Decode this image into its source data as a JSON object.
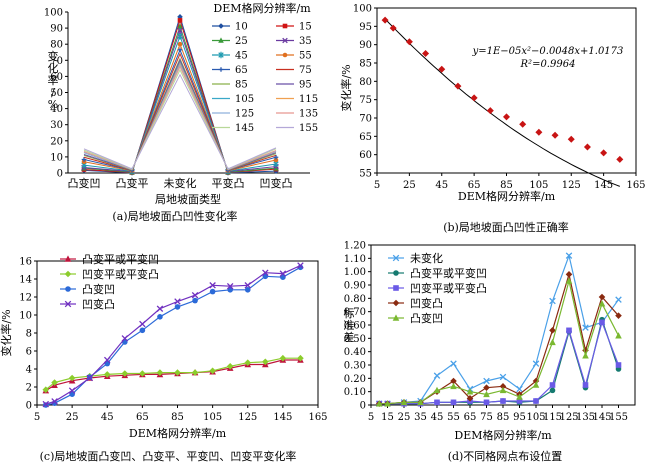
{
  "chart_data": [
    {
      "id": "a",
      "type": "line",
      "categories": [
        "凸变凹",
        "凸变平",
        "未变化",
        "平变凸",
        "凹变凸"
      ],
      "xlabel": "局地坡面类型",
      "ylabel": "变化率/%",
      "ylim": [
        0,
        100
      ],
      "yticks": [
        0,
        10,
        20,
        30,
        40,
        50,
        60,
        70,
        80,
        90,
        100
      ],
      "legend_title": "DEM格网分辨率/m",
      "legend_placement": "right",
      "caption": "(a)局地坡面凸凹性变化率",
      "series": [
        {
          "name": "10",
          "color": "#1f4fa0",
          "marker": "diamond",
          "values": [
            1.6,
            0.1,
            97.0,
            0.1,
            1.2
          ]
        },
        {
          "name": "15",
          "color": "#d01414",
          "marker": "square",
          "values": [
            2.2,
            0.3,
            94.8,
            0.3,
            2.4
          ]
        },
        {
          "name": "25",
          "color": "#3a9a3a",
          "marker": "triangle",
          "values": [
            3.0,
            0.5,
            91.0,
            0.5,
            3.0
          ]
        },
        {
          "name": "35",
          "color": "#6a3aa0",
          "marker": "x",
          "values": [
            3.4,
            0.9,
            88.5,
            0.9,
            4.0
          ]
        },
        {
          "name": "45",
          "color": "#1f9bb0",
          "marker": "star",
          "values": [
            4.9,
            1.2,
            85.0,
            1.2,
            5.6
          ]
        },
        {
          "name": "55",
          "color": "#e07020",
          "marker": "circle",
          "values": [
            7.0,
            1.4,
            80.0,
            1.4,
            8.1
          ]
        },
        {
          "name": "65",
          "color": "#2a5ab0",
          "marker": "plus",
          "values": [
            8.4,
            1.6,
            76.5,
            1.6,
            9.8
          ]
        },
        {
          "name": "75",
          "color": "#c83020",
          "marker": "none",
          "values": [
            9.8,
            1.7,
            74.0,
            1.7,
            11.0
          ]
        },
        {
          "name": "85",
          "color": "#8ab04a",
          "marker": "none",
          "values": [
            10.9,
            1.8,
            71.0,
            1.8,
            12.0
          ]
        },
        {
          "name": "95",
          "color": "#6a52a8",
          "marker": "none",
          "values": [
            11.5,
            1.9,
            70.0,
            1.9,
            12.6
          ]
        },
        {
          "name": "105",
          "color": "#3aa8c8",
          "marker": "none",
          "values": [
            12.6,
            2.0,
            68.5,
            2.0,
            13.4
          ]
        },
        {
          "name": "115",
          "color": "#f0a050",
          "marker": "none",
          "values": [
            12.8,
            2.1,
            67.8,
            2.1,
            13.4
          ]
        },
        {
          "name": "125",
          "color": "#8fb0dc",
          "marker": "none",
          "values": [
            12.7,
            2.2,
            67.0,
            2.2,
            13.6
          ]
        },
        {
          "name": "135",
          "color": "#e89890",
          "marker": "none",
          "values": [
            13.4,
            2.3,
            66.0,
            2.3,
            14.0
          ]
        },
        {
          "name": "145",
          "color": "#b8d898",
          "marker": "none",
          "values": [
            14.2,
            2.4,
            64.0,
            2.4,
            15.0
          ]
        },
        {
          "name": "155",
          "color": "#b4a8d8",
          "marker": "none",
          "values": [
            15.0,
            2.6,
            61.0,
            2.6,
            15.6
          ]
        }
      ]
    },
    {
      "id": "b",
      "type": "scatter",
      "x": [
        10,
        15,
        25,
        35,
        45,
        55,
        65,
        75,
        85,
        95,
        105,
        115,
        125,
        135,
        145,
        155
      ],
      "y": [
        96.7,
        94.5,
        90.8,
        87.6,
        83.3,
        78.7,
        75.5,
        72.0,
        70.3,
        68.3,
        66.1,
        65.3,
        64.2,
        62.1,
        60.5,
        58.7
      ],
      "trendline": {
        "type": "polynomial",
        "coefficients": [
          1e-05,
          -0.0048,
          1.0173
        ]
      },
      "equation": "y=1E−05x²−0.0048x+1.0173",
      "r2": "R²=0.9964",
      "xlabel": "DEM格网分辨率/m",
      "ylabel": "变化率/%",
      "xlim": [
        5,
        165
      ],
      "ylim": [
        55,
        100
      ],
      "xticks": [
        5,
        25,
        45,
        65,
        85,
        105,
        125,
        145,
        165
      ],
      "yticks": [
        55,
        60,
        65,
        70,
        75,
        80,
        85,
        90,
        95,
        100
      ],
      "caption": "(b)局地坡面凸凹性正确率"
    },
    {
      "id": "c",
      "type": "line",
      "x": [
        10,
        15,
        25,
        35,
        45,
        55,
        65,
        75,
        85,
        95,
        105,
        115,
        125,
        135,
        145,
        155
      ],
      "xlabel": "DEM格网分辨率/m",
      "ylabel": "变化率/%",
      "xlim": [
        5,
        165
      ],
      "ylim": [
        0,
        16
      ],
      "xticks": [
        5,
        25,
        45,
        65,
        85,
        105,
        125,
        145,
        165
      ],
      "yticks": [
        0,
        2,
        4,
        6,
        8,
        10,
        12,
        14,
        16
      ],
      "legend_placement": "top-left",
      "caption": "(c)局地坡面凸变凹、凸变平、平变凹、凹变平变化率",
      "series": [
        {
          "name": "凸变平或平变凹",
          "color": "#c0143c",
          "marker": "triangle",
          "values": [
            1.6,
            2.2,
            2.7,
            3.0,
            3.2,
            3.3,
            3.4,
            3.4,
            3.5,
            3.6,
            3.7,
            4.1,
            4.5,
            4.5,
            5.0,
            5.0
          ]
        },
        {
          "name": "凹变平或平变凸",
          "color": "#8ccc2c",
          "marker": "diamond",
          "values": [
            1.7,
            2.5,
            3.0,
            3.2,
            3.4,
            3.5,
            3.5,
            3.6,
            3.6,
            3.6,
            3.8,
            4.3,
            4.7,
            4.8,
            5.2,
            5.2
          ]
        },
        {
          "name": "凸变凹",
          "color": "#2c6ad8",
          "marker": "circle",
          "values": [
            0.0,
            0.2,
            1.2,
            3.1,
            4.6,
            7.0,
            8.3,
            9.8,
            10.9,
            11.6,
            12.6,
            12.8,
            12.8,
            14.3,
            14.2,
            15.3
          ]
        },
        {
          "name": "凹变凸",
          "color": "#7030c0",
          "marker": "x",
          "values": [
            0.1,
            0.4,
            1.6,
            3.0,
            5.0,
            7.4,
            9.0,
            10.7,
            11.5,
            12.2,
            13.3,
            13.2,
            13.3,
            14.7,
            14.6,
            15.5
          ]
        }
      ]
    },
    {
      "id": "d",
      "type": "line",
      "x": [
        10,
        15,
        25,
        35,
        45,
        55,
        65,
        75,
        85,
        95,
        105,
        115,
        125,
        135,
        145,
        155
      ],
      "xlabel": "DEM格网分辨率/m",
      "ylabel": "标准差",
      "xlim": [
        5,
        165
      ],
      "ylim": [
        0,
        1.2
      ],
      "xticks": [
        5,
        15,
        25,
        35,
        45,
        55,
        65,
        75,
        85,
        95,
        105,
        115,
        125,
        135,
        145,
        155
      ],
      "yticks": [
        "0",
        "0.10",
        "0.20",
        "0.30",
        "0.40",
        "0.50",
        "0.60",
        "0.70",
        "0.80",
        "0.90",
        "1.00",
        "1.10",
        "1.20"
      ],
      "legend_placement": "top-left",
      "caption": "(d)不同格网点布设位置",
      "series": [
        {
          "name": "未变化",
          "color": "#4aa0e8",
          "marker": "x",
          "values": [
            0.01,
            0.01,
            0.02,
            0.03,
            0.22,
            0.31,
            0.12,
            0.18,
            0.21,
            0.12,
            0.31,
            0.78,
            1.12,
            0.58,
            0.62,
            0.79
          ]
        },
        {
          "name": "凸变平或平变凹",
          "color": "#157a70",
          "marker": "circle",
          "values": [
            0.01,
            0.01,
            0.01,
            0.01,
            0.02,
            0.02,
            0.02,
            0.02,
            0.03,
            0.02,
            0.03,
            0.11,
            0.55,
            0.13,
            0.64,
            0.27
          ]
        },
        {
          "name": "凹变平或平变凸",
          "color": "#6a5ae6",
          "marker": "square",
          "values": [
            0.01,
            0.01,
            0.01,
            0.01,
            0.02,
            0.02,
            0.03,
            0.02,
            0.03,
            0.03,
            0.03,
            0.15,
            0.56,
            0.15,
            0.62,
            0.3
          ]
        },
        {
          "name": "凹变凸",
          "color": "#8a2a10",
          "marker": "diamond",
          "values": [
            0.01,
            0.01,
            0.02,
            0.02,
            0.1,
            0.18,
            0.05,
            0.13,
            0.14,
            0.08,
            0.18,
            0.56,
            0.98,
            0.41,
            0.81,
            0.67
          ]
        },
        {
          "name": "凸变凹",
          "color": "#7ab830",
          "marker": "triangle",
          "values": [
            0.01,
            0.01,
            0.02,
            0.02,
            0.11,
            0.14,
            0.1,
            0.08,
            0.11,
            0.06,
            0.15,
            0.47,
            0.93,
            0.37,
            0.76,
            0.52
          ]
        }
      ]
    }
  ]
}
